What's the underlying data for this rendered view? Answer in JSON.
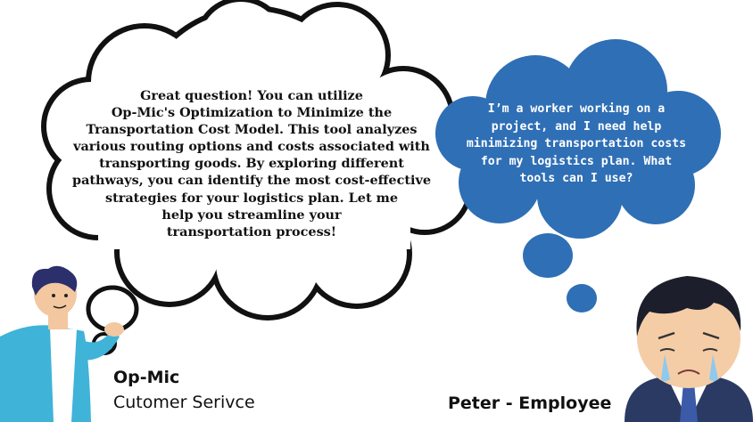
{
  "agent_bubble": {
    "lines": [
      "Great question! You can utilize",
      "Op-Mic's Optimization to Minimize the",
      "Transportation Cost Model. This tool analyzes",
      "various routing options and costs associated with",
      "transporting goods. By exploring different",
      "pathways, you can identify the most cost-effective",
      "strategies for your logistics plan. Let me",
      "help you streamline your",
      "transportation process!"
    ]
  },
  "employee_bubble": {
    "lines": [
      "I’m a worker working on a",
      "project, and I need help",
      "minimizing transportation costs",
      "for my logistics plan. What",
      "tools can I use?"
    ]
  },
  "agent": {
    "name": "Op-Mic",
    "role": "Cutomer Serivce"
  },
  "employee": {
    "name": "Peter - Employee"
  },
  "colors": {
    "cloud_outline": "#111111",
    "employee_cloud": "#2f6fb5",
    "agent_shirt": "#3fb3d8",
    "agent_skin": "#f3c7a0",
    "employee_suit": "#2a3a63",
    "employee_skin": "#f4cda7"
  }
}
